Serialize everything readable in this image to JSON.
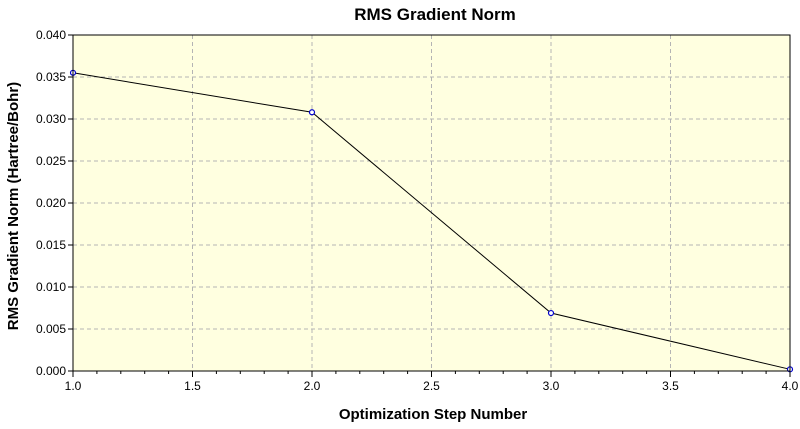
{
  "chart_data": {
    "type": "line",
    "title": "RMS Gradient Norm",
    "xlabel": "Optimization Step Number",
    "ylabel": "RMS Gradient Norm (Hartree/Bohr)",
    "xlim": [
      1.0,
      4.0
    ],
    "ylim": [
      0.0,
      0.04
    ],
    "x_ticks": [
      "1.0",
      "1.5",
      "2.0",
      "2.5",
      "3.0",
      "3.5",
      "4.0"
    ],
    "y_ticks": [
      "0.000",
      "0.005",
      "0.010",
      "0.015",
      "0.020",
      "0.025",
      "0.030",
      "0.035",
      "0.040"
    ],
    "x_minor_step": 0.1,
    "grid": true,
    "series": [
      {
        "x": [
          1.0,
          2.0,
          3.0,
          4.0
        ],
        "values": [
          0.0355,
          0.0308,
          0.0069,
          0.0002
        ]
      }
    ]
  },
  "colors": {
    "plot_background": "#ffffe0",
    "line": "#000000",
    "marker": "#0000cc",
    "grid": "#b4b4b4"
  }
}
